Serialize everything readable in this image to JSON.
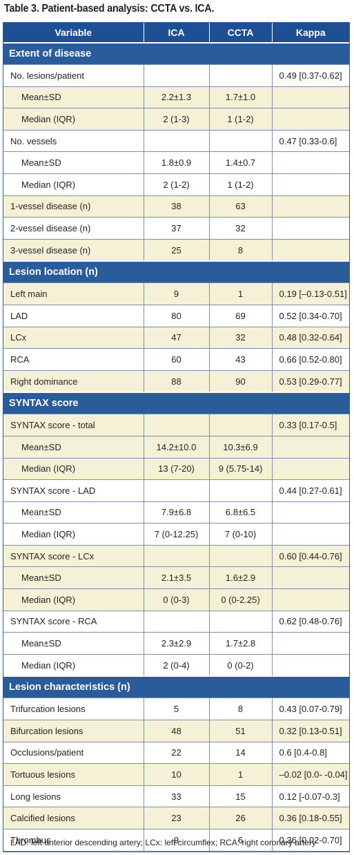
{
  "caption": "Table 3. Patient-based analysis: CCTA vs. ICA.",
  "headers": [
    "Variable",
    "ICA",
    "CCTA",
    "Kappa"
  ],
  "rows": [
    {
      "type": "section",
      "label": "Extent of disease"
    },
    {
      "type": "row",
      "shade": false,
      "sub": false,
      "cells": [
        "No. lesions/patient",
        "",
        "",
        "0.49 [0.37-0.62]"
      ]
    },
    {
      "type": "row",
      "shade": true,
      "sub": true,
      "cells": [
        "Mean±SD",
        "2.2±1.3",
        "1.7±1.0",
        ""
      ]
    },
    {
      "type": "row",
      "shade": true,
      "sub": true,
      "cells": [
        "Median (IQR)",
        "2 (1-3)",
        "1 (1-2)",
        ""
      ]
    },
    {
      "type": "row",
      "shade": false,
      "sub": false,
      "cells": [
        "No. vessels",
        "",
        "",
        "0.47 [0.33-0.6]"
      ]
    },
    {
      "type": "row",
      "shade": false,
      "sub": true,
      "cells": [
        "Mean±SD",
        "1.8±0.9",
        "1.4±0.7",
        ""
      ]
    },
    {
      "type": "row",
      "shade": false,
      "sub": true,
      "cells": [
        "Median (IQR)",
        "2 (1-2)",
        "1 (1-2)",
        ""
      ]
    },
    {
      "type": "row",
      "shade": true,
      "sub": false,
      "cells": [
        "1-vessel disease (n)",
        "38",
        "63",
        ""
      ]
    },
    {
      "type": "row",
      "shade": false,
      "sub": false,
      "cells": [
        "2-vessel disease (n)",
        "37",
        "32",
        ""
      ]
    },
    {
      "type": "row",
      "shade": true,
      "sub": false,
      "cells": [
        "3-vessel disease (n)",
        "25",
        "8",
        ""
      ]
    },
    {
      "type": "section",
      "label": "Lesion location (n)"
    },
    {
      "type": "row",
      "shade": true,
      "sub": false,
      "cells": [
        "Left main",
        "9",
        "1",
        "0.19 [–0.13-0.51]"
      ]
    },
    {
      "type": "row",
      "shade": false,
      "sub": false,
      "cells": [
        "LAD",
        "80",
        "69",
        "0.52 [0.34-0.70]"
      ]
    },
    {
      "type": "row",
      "shade": true,
      "sub": false,
      "cells": [
        "LCx",
        "47",
        "32",
        "0.48 [0.32-0.64]"
      ]
    },
    {
      "type": "row",
      "shade": false,
      "sub": false,
      "cells": [
        "RCA",
        "60",
        "43",
        "0.66 [0.52-0.80]"
      ]
    },
    {
      "type": "row",
      "shade": true,
      "sub": false,
      "cells": [
        "Right dominance",
        "88",
        "90",
        "0.53 [0.29-0.77]"
      ]
    },
    {
      "type": "section",
      "label": "SYNTAX score"
    },
    {
      "type": "row",
      "shade": true,
      "sub": false,
      "cells": [
        "SYNTAX score - total",
        "",
        "",
        "0.33 [0.17-0.5]"
      ]
    },
    {
      "type": "row",
      "shade": true,
      "sub": true,
      "cells": [
        "Mean±SD",
        "14.2±10.0",
        "10.3±6.9",
        ""
      ]
    },
    {
      "type": "row",
      "shade": true,
      "sub": true,
      "cells": [
        "Median (IQR)",
        "13 (7-20)",
        "9 (5.75-14)",
        ""
      ]
    },
    {
      "type": "row",
      "shade": false,
      "sub": false,
      "cells": [
        "SYNTAX score - LAD",
        "",
        "",
        "0.44 [0.27-0.61]"
      ]
    },
    {
      "type": "row",
      "shade": false,
      "sub": true,
      "cells": [
        "Mean±SD",
        "7.9±6.8",
        "6.8±6.5",
        ""
      ]
    },
    {
      "type": "row",
      "shade": false,
      "sub": true,
      "cells": [
        "Median (IQR)",
        "7 (0-12.25)",
        "7 (0-10)",
        ""
      ]
    },
    {
      "type": "row",
      "shade": true,
      "sub": false,
      "cells": [
        "SYNTAX score - LCx",
        "",
        "",
        "0.60 [0.44-0.76]"
      ]
    },
    {
      "type": "row",
      "shade": true,
      "sub": true,
      "cells": [
        "Mean±SD",
        "2.1±3.5",
        "1.6±2.9",
        ""
      ]
    },
    {
      "type": "row",
      "shade": true,
      "sub": true,
      "cells": [
        "Median (IQR)",
        "0 (0-3)",
        "0 (0-2.25)",
        ""
      ]
    },
    {
      "type": "row",
      "shade": false,
      "sub": false,
      "cells": [
        "SYNTAX score - RCA",
        "",
        "",
        "0.62 [0.48-0.76]"
      ]
    },
    {
      "type": "row",
      "shade": false,
      "sub": true,
      "cells": [
        "Mean±SD",
        "2.3±2.9",
        "1.7±2.8",
        ""
      ]
    },
    {
      "type": "row",
      "shade": false,
      "sub": true,
      "cells": [
        "Median (IQR)",
        "2 (0-4)",
        "0 (0-2)",
        ""
      ]
    },
    {
      "type": "section",
      "label": "Lesion characteristics (n)"
    },
    {
      "type": "row",
      "shade": false,
      "sub": false,
      "cells": [
        "Trifurcation lesions",
        "5",
        "8",
        "0.43 [0.07-0.79]"
      ]
    },
    {
      "type": "row",
      "shade": true,
      "sub": false,
      "cells": [
        "Bifurcation lesions",
        "48",
        "51",
        "0.32 [0.13-0.51]"
      ]
    },
    {
      "type": "row",
      "shade": false,
      "sub": false,
      "cells": [
        "Occlusions/patient",
        "22",
        "14",
        "0.6 [0.4-0.8]"
      ]
    },
    {
      "type": "row",
      "shade": true,
      "sub": false,
      "cells": [
        "Tortuous lesions",
        "10",
        "1",
        "–0.02 [0.0- -0.04]"
      ]
    },
    {
      "type": "row",
      "shade": false,
      "sub": false,
      "cells": [
        "Long lesions",
        "33",
        "15",
        "0.12 [-0.07-0.3]"
      ]
    },
    {
      "type": "row",
      "shade": true,
      "sub": false,
      "cells": [
        "Calcified lesions",
        "23",
        "26",
        "0.36 [0.18-0.55]"
      ]
    },
    {
      "type": "row",
      "shade": false,
      "sub": false,
      "cells": [
        "Thrombus",
        "9",
        "6",
        "0.36 [0.02-0.70]"
      ]
    }
  ],
  "footnote": "LAD: left anterior descending artery; LCx: left circumflex; RCA: right coronary artery",
  "colors": {
    "header_bg": "#1e4f92",
    "section_bg": "#2b5c9a",
    "shade_bg": "#f4f1d6",
    "border": "#7b8fae"
  }
}
